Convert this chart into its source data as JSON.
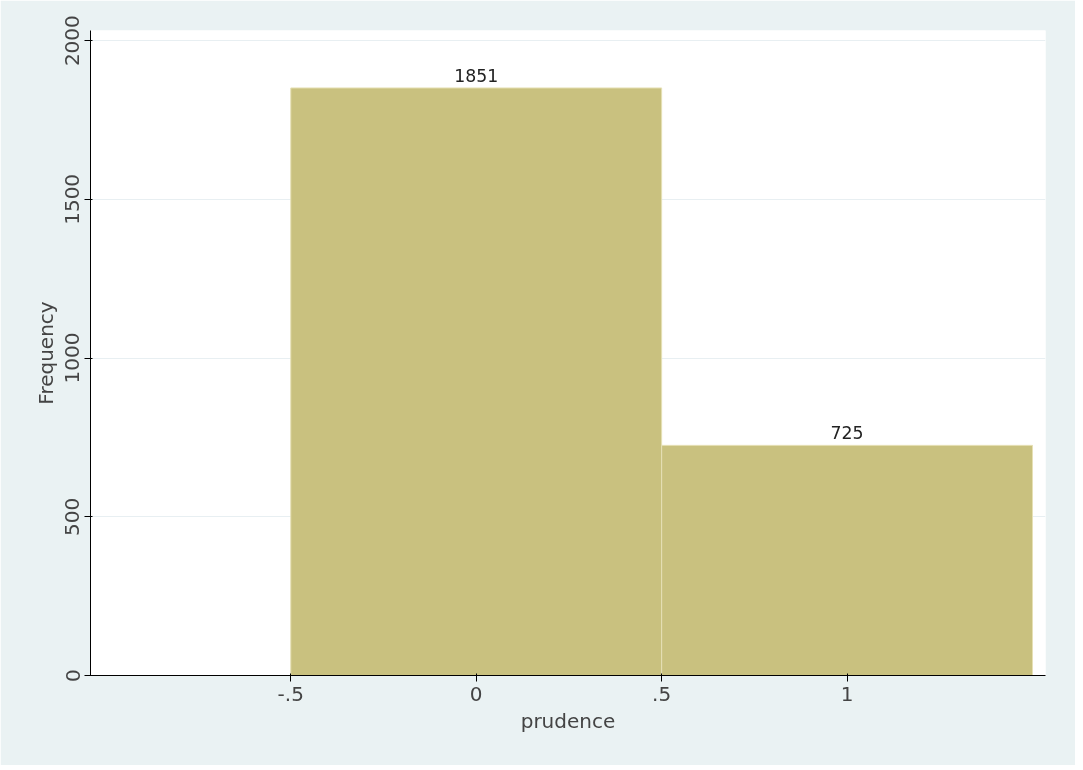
{
  "chart_data": {
    "type": "histogram",
    "xlabel": "prudence",
    "ylabel": "Frequency",
    "bins": [
      -0.5,
      0.5,
      1.5
    ],
    "values": [
      1851,
      725
    ],
    "color": "#c9c17f",
    "data_labels": true,
    "xlim": [
      -1.04,
      1.535
    ],
    "ylim": [
      0,
      2032
    ],
    "xticks": [
      {
        "value": -0.5,
        "label": "-.5"
      },
      0,
      {
        "value": 0.5,
        "label": ".5"
      },
      1
    ],
    "yticks": [
      0,
      500,
      1000,
      1500,
      2000
    ],
    "grid": "y"
  }
}
